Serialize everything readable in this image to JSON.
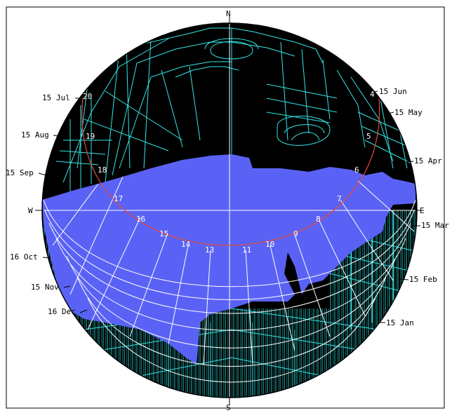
{
  "compass": {
    "n": "N",
    "s": "S",
    "e": "E",
    "w": "W"
  },
  "months_left": [
    "15 Jul",
    "15 Aug",
    "15 Sep",
    "16 Oct",
    "15 Nov",
    "16 Dec"
  ],
  "months_right": [
    "15 Jun",
    "15 May",
    "15 Apr",
    "15 Mar",
    "15 Feb",
    "15 Jan"
  ],
  "hours": [
    "20",
    "19",
    "18",
    "17",
    "16",
    "15",
    "14",
    "13",
    "11",
    "10",
    "9",
    "8",
    "7",
    "6",
    "5",
    "4"
  ],
  "colors": {
    "background": "#ffffff",
    "obstruction": "#000000",
    "obstruction_lines": "#33e6e6",
    "sky": "#5a62f5",
    "sun_path_grid": "#ffffff",
    "sun_path_highlight": "#e8483a",
    "axis": "#ffffff",
    "frame": "#000000"
  }
}
